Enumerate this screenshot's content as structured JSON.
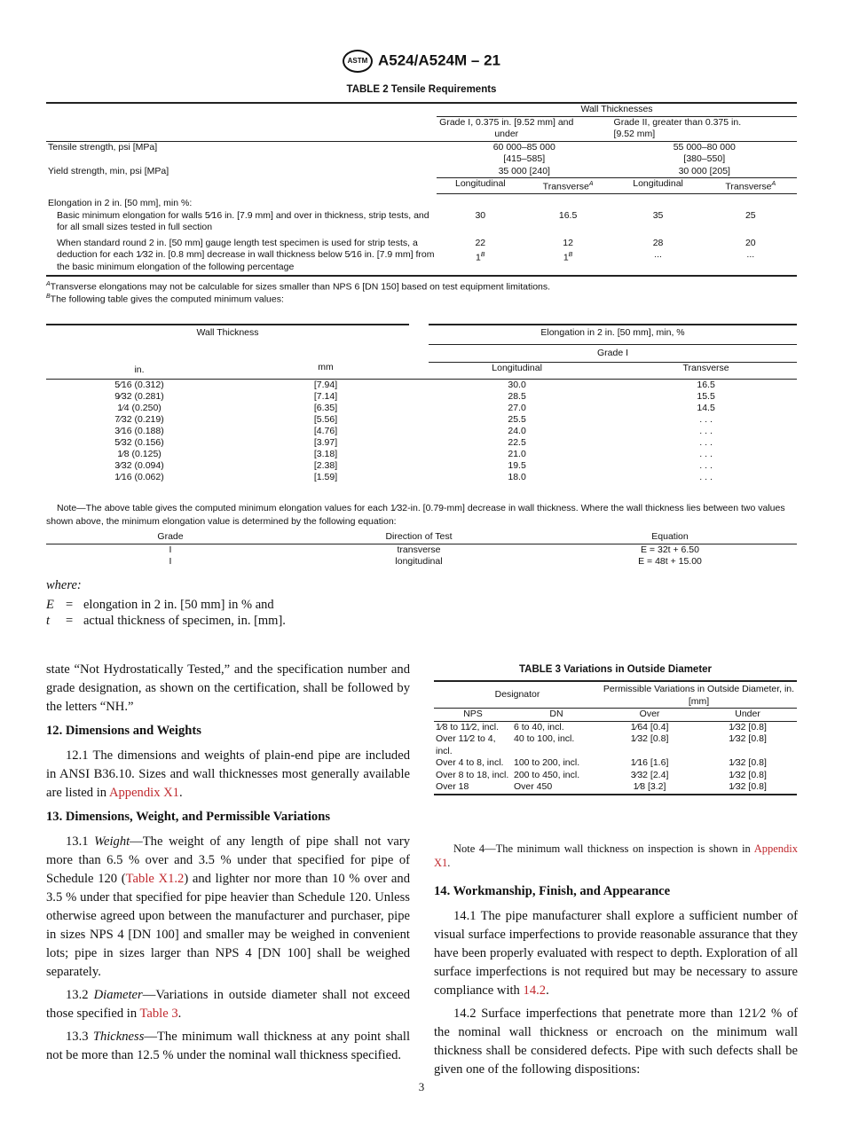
{
  "header": {
    "logo": "ASTM",
    "designation": "A524/A524M – 21"
  },
  "table2": {
    "title": "TABLE 2 Tensile Requirements",
    "group_header": "Wall Thicknesses",
    "grade1": "Grade I, 0.375 in. [9.52 mm] and under",
    "grade2": "Grade II, greater than 0.375 in. [9.52 mm]",
    "rows": [
      {
        "label": "Tensile strength, psi [MPa]",
        "g1": "60 000–85 000",
        "g1b": "[415–585]",
        "g2": "55 000–80 000",
        "g2b": "[380–550]"
      },
      {
        "label": "Yield strength, min, psi [MPa]",
        "g1": "35 000 [240]",
        "g2": "30 000 [205]"
      }
    ],
    "sub": [
      "Longitudinal",
      "Transverse",
      "Longitudinal",
      "Transverse"
    ],
    "sub_sup": "A",
    "elong_label": "Elongation in 2 in. [50 mm], min %:",
    "basic": {
      "label": "Basic minimum elongation for walls 5⁄16 in. [7.9 mm] and over in thickness, strip tests, and for all small sizes tested in full section",
      "values": [
        "30",
        "16.5",
        "35",
        "25"
      ]
    },
    "deduct": {
      "label": "When standard round 2 in. [50 mm] gauge length test specimen is used for strip tests, a deduction for each 1⁄32 in. [0.8 mm] decrease in wall thickness below 5⁄16 in. [7.9 mm] from the basic minimum elongation of the following percentage",
      "values": [
        "22",
        "12",
        "28",
        "20"
      ],
      "values2": [
        "1",
        "1",
        "...",
        "..."
      ],
      "sup": "B"
    },
    "footnotes": [
      {
        "mark": "A",
        "text": "Transverse elongations may not be calculable for sizes smaller than NPS 6 [DN 150] based on test equipment limitations."
      },
      {
        "mark": "B",
        "text": "The following table gives the computed minimum values:"
      }
    ]
  },
  "minTable": {
    "h_wall": "Wall Thickness",
    "h_elong": "Elongation in 2 in. [50 mm], min, %",
    "h_grade": "Grade I",
    "cols": [
      "in.",
      "mm",
      "Longitudinal",
      "Transverse"
    ],
    "rows": [
      [
        "5⁄16 (0.312)",
        "[7.94]",
        "30.0",
        "16.5"
      ],
      [
        "9⁄32 (0.281)",
        "[7.14]",
        "28.5",
        "15.5"
      ],
      [
        "1⁄4 (0.250)",
        "[6.35]",
        "27.0",
        "14.5"
      ],
      [
        "7⁄32 (0.219)",
        "[5.56]",
        "25.5",
        ". . ."
      ],
      [
        "3⁄16 (0.188)",
        "[4.76]",
        "24.0",
        ". . ."
      ],
      [
        "5⁄32 (0.156)",
        "[3.97]",
        "22.5",
        ". . ."
      ],
      [
        "1⁄8 (0.125)",
        "[3.18]",
        "21.0",
        ". . ."
      ],
      [
        "3⁄32 (0.094)",
        "[2.38]",
        "19.5",
        ". . ."
      ],
      [
        "1⁄16 (0.062)",
        "[1.59]",
        "18.0",
        ". . ."
      ]
    ]
  },
  "note": "Note—The above table gives the computed minimum elongation values for each 1⁄32-in. [0.79-mm] decrease in wall thickness. Where the wall thickness lies between two values shown above, the minimum elongation value is determined by the following equation:",
  "eqTable": {
    "cols": [
      "Grade",
      "Direction of Test",
      "Equation"
    ],
    "rows": [
      [
        "I",
        "transverse",
        "E = 32t + 6.50"
      ],
      [
        "I",
        "longitudinal",
        "E = 48t + 15.00"
      ]
    ]
  },
  "where": {
    "label": "where:",
    "defs": [
      {
        "sym": "E",
        "eq": "=",
        "text": "elongation in 2 in. [50 mm] in % and"
      },
      {
        "sym": "t",
        "eq": "=",
        "text": "actual thickness of specimen, in. [mm]."
      }
    ]
  },
  "left": {
    "p0": "state “Not Hydrostatically Tested,” and the specification number and grade designation, as shown on the certification, shall be followed by the letters “NH.”",
    "h12": "12. Dimensions and Weights",
    "p121a": "12.1 The dimensions and weights of plain-end pipe are included in ANSI B36.10. Sizes and wall thicknesses most generally available are listed in ",
    "p121link": "Appendix X1",
    "p121b": ".",
    "h13": "13. Dimensions, Weight, and Permissible Variations",
    "p131num": "13.1 ",
    "p131em": "Weight",
    "p131a": "—The weight of any length of pipe shall not vary more than 6.5 % over and 3.5 % under that specified for pipe of Schedule 120 (",
    "p131link": "Table X1.2",
    "p131b": ") and lighter nor more than 10 % over and 3.5 % under that specified for pipe heavier than Schedule 120. Unless otherwise agreed upon between the manufacturer and purchaser, pipe in sizes NPS 4 [DN 100] and smaller may be weighed in convenient lots; pipe in sizes larger than NPS 4 [DN 100] shall be weighed separately.",
    "p132num": "13.2 ",
    "p132em": "Diameter",
    "p132a": "—Variations in outside diameter shall not exceed those specified in ",
    "p132link": "Table 3",
    "p132b": ".",
    "p133num": "13.3 ",
    "p133em": "Thickness",
    "p133a": "—The minimum wall thickness at any point shall not be more than 12.5 % under the nominal wall thickness specified."
  },
  "table3": {
    "title": "TABLE 3 Variations in Outside Diameter",
    "h_des": "Designator",
    "h_var": "Permissible Variations in Outside Diameter, in. [mm]",
    "cols": [
      "NPS",
      "DN",
      "Over",
      "Under"
    ],
    "rows": [
      [
        "1⁄8 to 11⁄2, incl.",
        "6 to 40, incl.",
        "1⁄64 [0.4]",
        "1⁄32 [0.8]"
      ],
      [
        "Over 11⁄2 to 4, incl.",
        "40 to 100, incl.",
        "1⁄32 [0.8]",
        "1⁄32 [0.8]"
      ],
      [
        "Over 4 to 8, incl.",
        "100 to 200, incl.",
        "1⁄16 [1.6]",
        "1⁄32 [0.8]"
      ],
      [
        "Over 8 to 18, incl.",
        "200 to 450, incl.",
        "3⁄32 [2.4]",
        "1⁄32 [0.8]"
      ],
      [
        "Over 18",
        "Over 450",
        "1⁄8 [3.2]",
        "1⁄32 [0.8]"
      ]
    ]
  },
  "right": {
    "note4a": "Note 4—The minimum wall thickness on inspection is shown in ",
    "note4link": "Appendix X1",
    "note4b": ".",
    "h14": "14. Workmanship, Finish, and Appearance",
    "p141a": "14.1 The pipe manufacturer shall explore a sufficient number of visual surface imperfections to provide reasonable assurance that they have been properly evaluated with respect to depth. Exploration of all surface imperfections is not required but may be necessary to assure compliance with ",
    "p141link": "14.2",
    "p141b": ".",
    "p142": "14.2 Surface imperfections that penetrate more than 121⁄2 % of the nominal wall thickness or encroach on the minimum wall thickness shall be considered defects. Pipe with such defects shall be given one of the following dispositions:"
  },
  "page_number": "3",
  "colors": {
    "link": "#c0282d"
  }
}
